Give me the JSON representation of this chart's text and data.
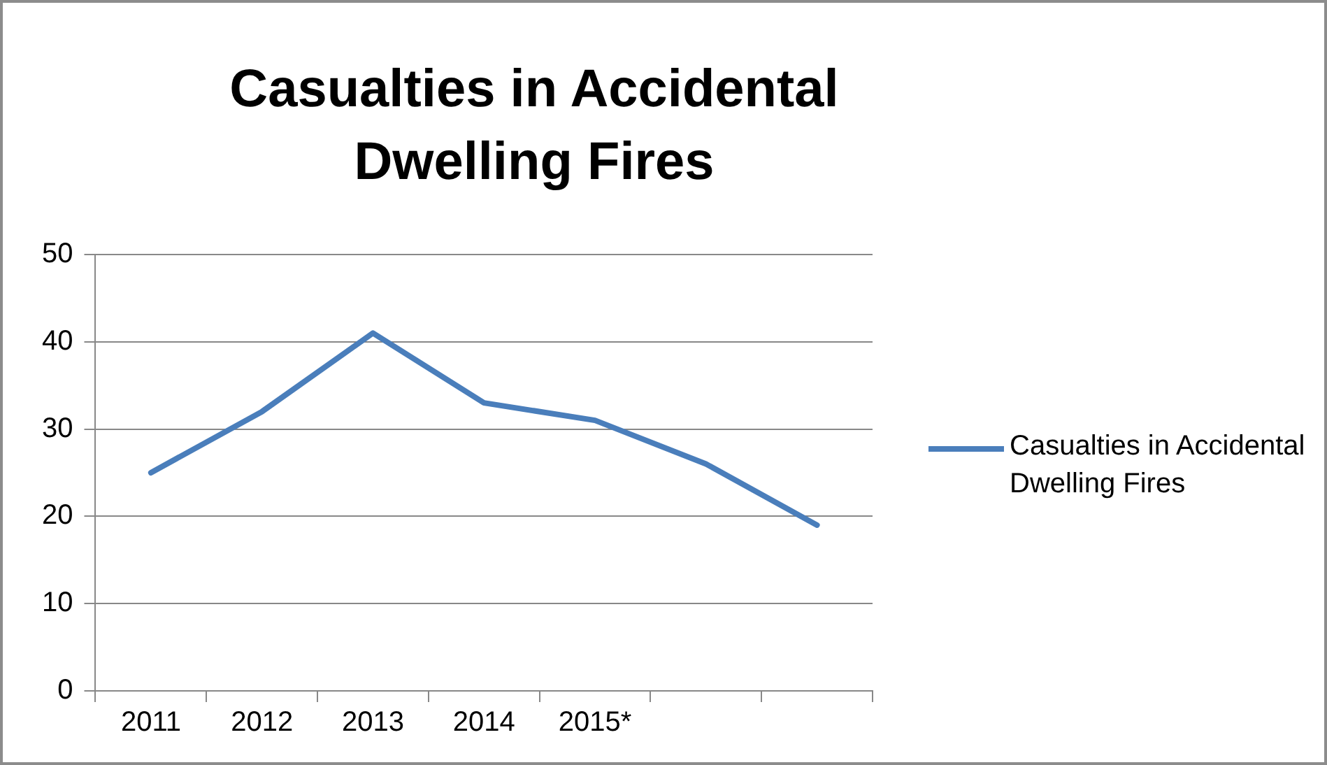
{
  "chart_data": {
    "type": "line",
    "title": "Casualties in Accidental Dwelling Fires",
    "categories": [
      "2011",
      "2012",
      "2013",
      "2014",
      "2015*",
      null,
      null
    ],
    "series": [
      {
        "name": "Casualties in Accidental Dwelling Fires",
        "color": "#4a7ebb",
        "values": [
          25,
          32,
          41,
          33,
          31,
          26,
          19
        ]
      }
    ],
    "ylim": [
      0,
      50
    ],
    "yticks": [
      0,
      10,
      20,
      30,
      40,
      50
    ],
    "grid": "y",
    "legend": "right",
    "marker": "none",
    "line_style": "solid"
  }
}
